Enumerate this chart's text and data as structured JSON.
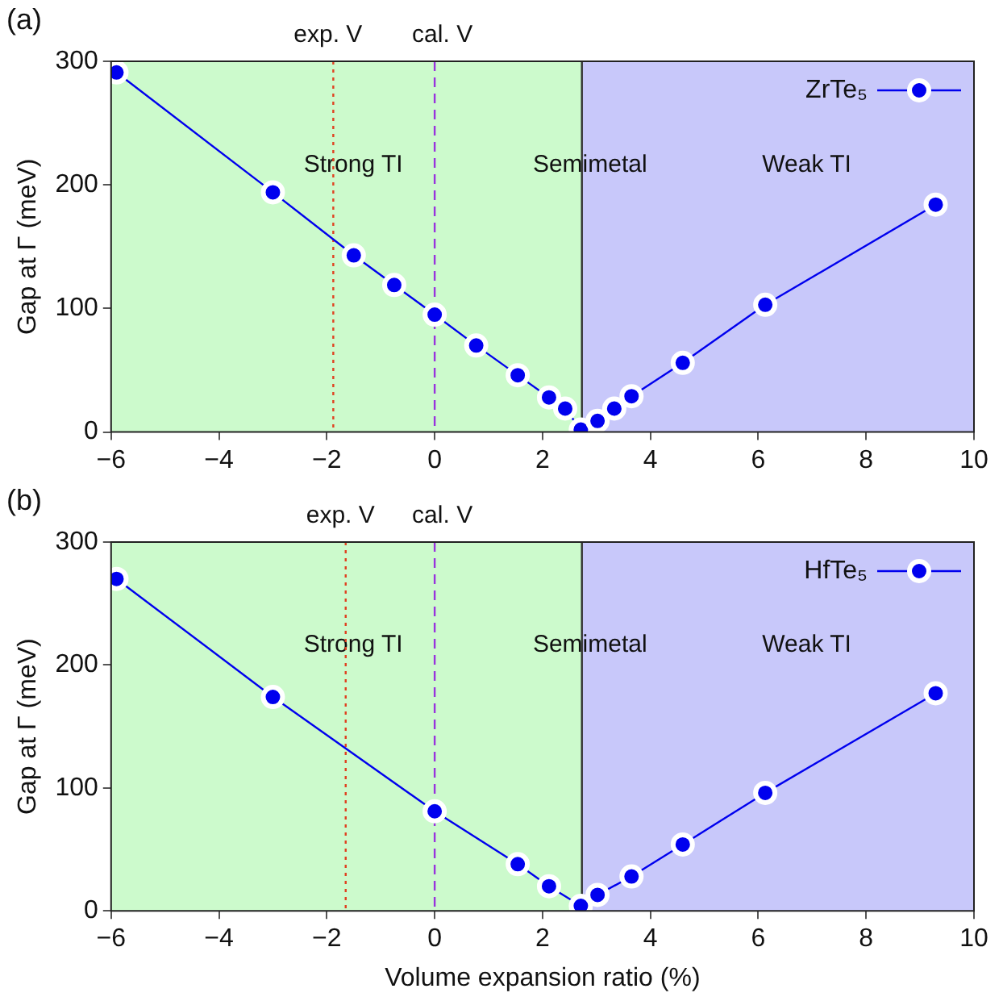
{
  "chart_data": [
    {
      "type": "line",
      "title": "(a)",
      "ylabel": "Gap at Γ (meV)",
      "series": [
        {
          "name": "ZrTe₅",
          "color": "#0000ee",
          "x": [
            -5.9,
            -3.0,
            -1.5,
            -0.75,
            0.0,
            0.77,
            1.54,
            2.12,
            2.42,
            2.71,
            3.02,
            3.33,
            3.65,
            4.6,
            6.13,
            9.29
          ],
          "values": [
            291,
            194,
            143,
            119,
            95,
            70,
            46,
            28,
            19,
            2,
            9,
            19,
            29,
            56,
            103,
            184
          ]
        }
      ],
      "xlim": [
        -6,
        10
      ],
      "xticks": [
        -6,
        -4,
        -2,
        0,
        2,
        4,
        6,
        8,
        10
      ],
      "ylim": [
        0,
        300
      ],
      "yticks": [
        0,
        100,
        200,
        300
      ],
      "bands": [
        {
          "axis": "x",
          "from": -6,
          "to": 2.73,
          "label": "Strong TI",
          "color": "#ccfacc"
        },
        {
          "axis": "x",
          "from": 2.73,
          "to": 10,
          "label": "Weak TI",
          "color": "#c8c8fa"
        }
      ],
      "ref_lines": [
        {
          "axis": "x",
          "value": -1.88,
          "label": "exp. V",
          "color": "#e04020",
          "line_style": "dotted"
        },
        {
          "axis": "x",
          "value": 0,
          "label": "cal. V",
          "color": "#9933dd",
          "line_style": "dashed"
        },
        {
          "axis": "x",
          "value": 2.73,
          "label": "Semimetal",
          "color": "#333333",
          "line_style": "solid"
        }
      ],
      "legend": "top right",
      "marker": "circle",
      "line_style": "solid",
      "grid": false
    },
    {
      "type": "line",
      "title": "(b)",
      "xlabel": "Volume expansion ratio (%)",
      "ylabel": "Gap at Γ (meV)",
      "series": [
        {
          "name": "HfTe₅",
          "color": "#0000ee",
          "x": [
            -5.9,
            -3.0,
            0.0,
            1.54,
            2.12,
            2.71,
            3.02,
            3.65,
            4.6,
            6.13,
            9.29
          ],
          "values": [
            270,
            174,
            81,
            38,
            20,
            4,
            13,
            28,
            54,
            96,
            177
          ]
        }
      ],
      "xlim": [
        -6,
        10
      ],
      "xticks": [
        -6,
        -4,
        -2,
        0,
        2,
        4,
        6,
        8,
        10
      ],
      "ylim": [
        0,
        300
      ],
      "yticks": [
        0,
        100,
        200,
        300
      ],
      "bands": [
        {
          "axis": "x",
          "from": -6,
          "to": 2.73,
          "label": "Strong TI",
          "color": "#ccfacc"
        },
        {
          "axis": "x",
          "from": 2.73,
          "to": 10,
          "label": "Weak TI",
          "color": "#c8c8fa"
        }
      ],
      "ref_lines": [
        {
          "axis": "x",
          "value": -1.65,
          "label": "exp. V",
          "color": "#e04020",
          "line_style": "dotted"
        },
        {
          "axis": "x",
          "value": 0,
          "label": "cal. V",
          "color": "#9933dd",
          "line_style": "dashed"
        },
        {
          "axis": "x",
          "value": 2.73,
          "label": "Semimetal",
          "color": "#333333",
          "line_style": "solid"
        }
      ],
      "legend": "top right",
      "marker": "circle",
      "line_style": "solid",
      "grid": false
    }
  ]
}
